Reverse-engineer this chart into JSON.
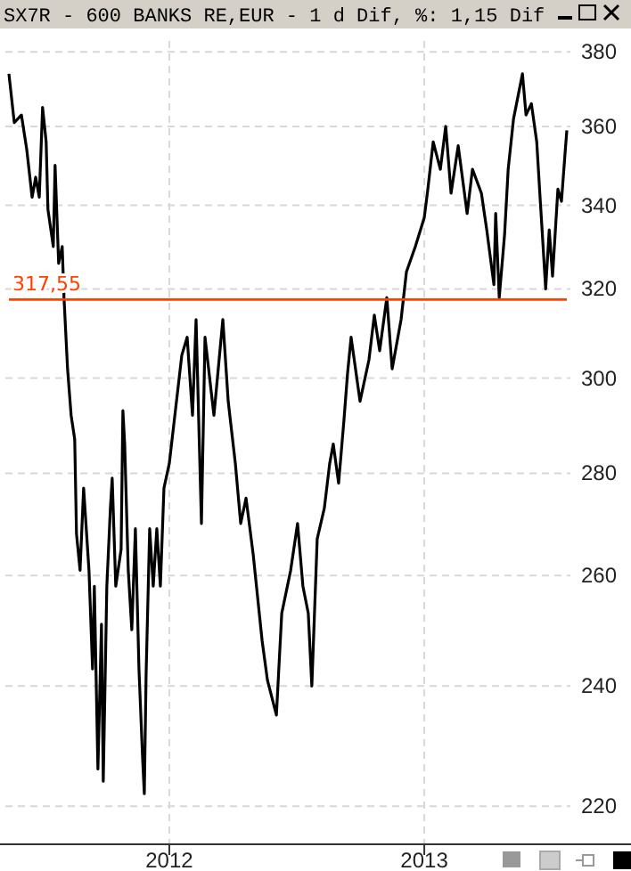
{
  "chart_data": {
    "type": "line",
    "title": "SX7R - 600 BANKS RE,EUR -  1 d Dif, %: 1,15 Dif",
    "x": [
      2011.371,
      2011.392,
      2011.42,
      2011.441,
      2011.462,
      2011.476,
      2011.49,
      2011.503,
      2011.517,
      2011.524,
      2011.545,
      2011.552,
      2011.566,
      2011.58,
      2011.587,
      2011.601,
      2011.615,
      2011.629,
      2011.636,
      2011.65,
      2011.664,
      2011.685,
      2011.699,
      2011.706,
      2011.72,
      2011.734,
      2011.741,
      2011.755,
      2011.769,
      2011.776,
      2011.79,
      2011.811,
      2011.818,
      2011.825,
      2011.839,
      2011.853,
      2011.867,
      2011.881,
      2011.895,
      2011.902,
      2011.909,
      2011.923,
      2011.937,
      2011.951,
      2011.965,
      2011.979,
      2012.0,
      2012.049,
      2012.07,
      2012.091,
      2012.105,
      2012.126,
      2012.14,
      2012.175,
      2012.21,
      2012.231,
      2012.259,
      2012.28,
      2012.301,
      2012.329,
      2012.364,
      2012.385,
      2012.42,
      2012.441,
      2012.476,
      2012.503,
      2012.524,
      2012.545,
      2012.559,
      2012.58,
      2012.608,
      2012.629,
      2012.643,
      2012.664,
      2012.685,
      2012.699,
      2012.713,
      2012.748,
      2012.783,
      2012.804,
      2012.825,
      2012.853,
      2012.874,
      2012.909,
      2012.93,
      2012.965,
      2013.0,
      2013.014,
      2013.035,
      2013.063,
      2013.084,
      2013.105,
      2013.133,
      2013.168,
      2013.189,
      2013.224,
      2013.245,
      2013.273,
      2013.28,
      2013.294,
      2013.315,
      2013.329,
      2013.35,
      2013.385,
      2013.399,
      2013.42,
      2013.441,
      2013.455,
      2013.462,
      2013.476,
      2013.49,
      2013.503,
      2013.524,
      2013.538,
      2013.552,
      2013.559
    ],
    "series": [
      {
        "color": "#000000",
        "values": [
          374,
          361,
          363,
          354,
          342,
          347,
          342,
          365,
          356,
          339,
          330,
          350,
          326,
          330,
          318,
          302,
          292,
          287,
          268,
          261,
          277,
          261,
          243,
          258,
          226,
          251,
          224,
          258,
          273,
          279,
          258,
          265,
          293,
          286,
          261,
          250,
          269,
          243,
          228,
          222,
          242,
          269,
          258,
          269,
          258,
          277,
          282,
          305,
          309,
          292,
          313,
          270,
          309,
          292,
          313,
          295,
          282,
          270,
          275,
          264,
          248,
          241,
          235,
          253,
          261,
          270,
          258,
          253,
          240,
          267,
          273,
          282,
          286,
          278,
          291,
          301,
          309,
          295,
          304,
          314,
          306,
          318,
          302,
          313,
          324,
          330,
          337,
          344,
          356,
          349,
          360,
          343,
          355,
          338,
          349,
          343,
          334,
          321,
          338,
          318,
          333,
          349,
          362,
          374,
          363,
          366,
          356,
          341,
          334,
          320,
          334,
          323,
          344,
          341,
          353,
          359
        ]
      }
    ],
    "xlim": [
      2011.357,
      2013.573
    ],
    "xticks": [
      2012,
      2013
    ],
    "ylim": [
      214,
      383
    ],
    "yticks": [
      220,
      240,
      260,
      280,
      300,
      320,
      340,
      360,
      380
    ],
    "log": true,
    "grid": true,
    "ref_lines": [
      {
        "axis": "y",
        "value": 317.55,
        "label": "317,55",
        "color": "#ff4000"
      }
    ]
  }
}
